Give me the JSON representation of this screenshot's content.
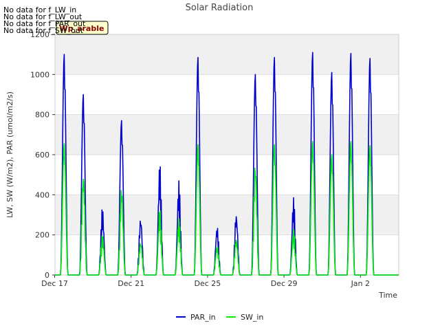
{
  "notices": [
    "No data for f_LW_in",
    "No data for f_LW_out",
    "No data for f_PAR_out",
    "No data for f_SW_out"
  ],
  "badge": {
    "text": "Wp_arable",
    "bg": "#ffffcc",
    "border": "#000000",
    "color": "#8b0000"
  },
  "colors": {
    "par_in": "#0000cc",
    "sw_in": "#00ee00",
    "band": "#f0f0f0",
    "grid": "#dddddd"
  },
  "chart_data": {
    "type": "line",
    "title": "Solar Radiation",
    "xlabel": "Time",
    "ylabel": "LW, SW (W/m2), PAR (umol/m2/s)",
    "ylim": [
      0,
      1200
    ],
    "xlim": [
      "2023-12-17",
      "2024-01-04"
    ],
    "x_ticks": [
      "Dec 17",
      "Dec 21",
      "Dec 25",
      "Dec 29",
      "Jan 2"
    ],
    "y_ticks": [
      0,
      200,
      400,
      600,
      800,
      1000,
      1200
    ],
    "grid": true,
    "legend_position": "bottom-center",
    "days": [
      "Dec 17",
      "Dec 18",
      "Dec 19",
      "Dec 20",
      "Dec 21",
      "Dec 22",
      "Dec 23",
      "Dec 24",
      "Dec 25",
      "Dec 26",
      "Dec 27",
      "Dec 28",
      "Dec 29",
      "Dec 30",
      "Dec 31",
      "Jan 1",
      "Jan 2",
      "Jan 3"
    ],
    "series": [
      {
        "name": "PAR_in",
        "color": "#0000cc",
        "daily_peak": [
          1100,
          900,
          340,
          770,
          300,
          565,
          475,
          1085,
          250,
          320,
          1000,
          1085,
          390,
          1110,
          1010,
          1105,
          1080,
          0
        ]
      },
      {
        "name": "SW_in",
        "color": "#00ee00",
        "daily_peak": [
          655,
          540,
          205,
          460,
          175,
          335,
          285,
          650,
          150,
          190,
          595,
          650,
          230,
          665,
          600,
          665,
          645,
          0
        ]
      }
    ]
  }
}
